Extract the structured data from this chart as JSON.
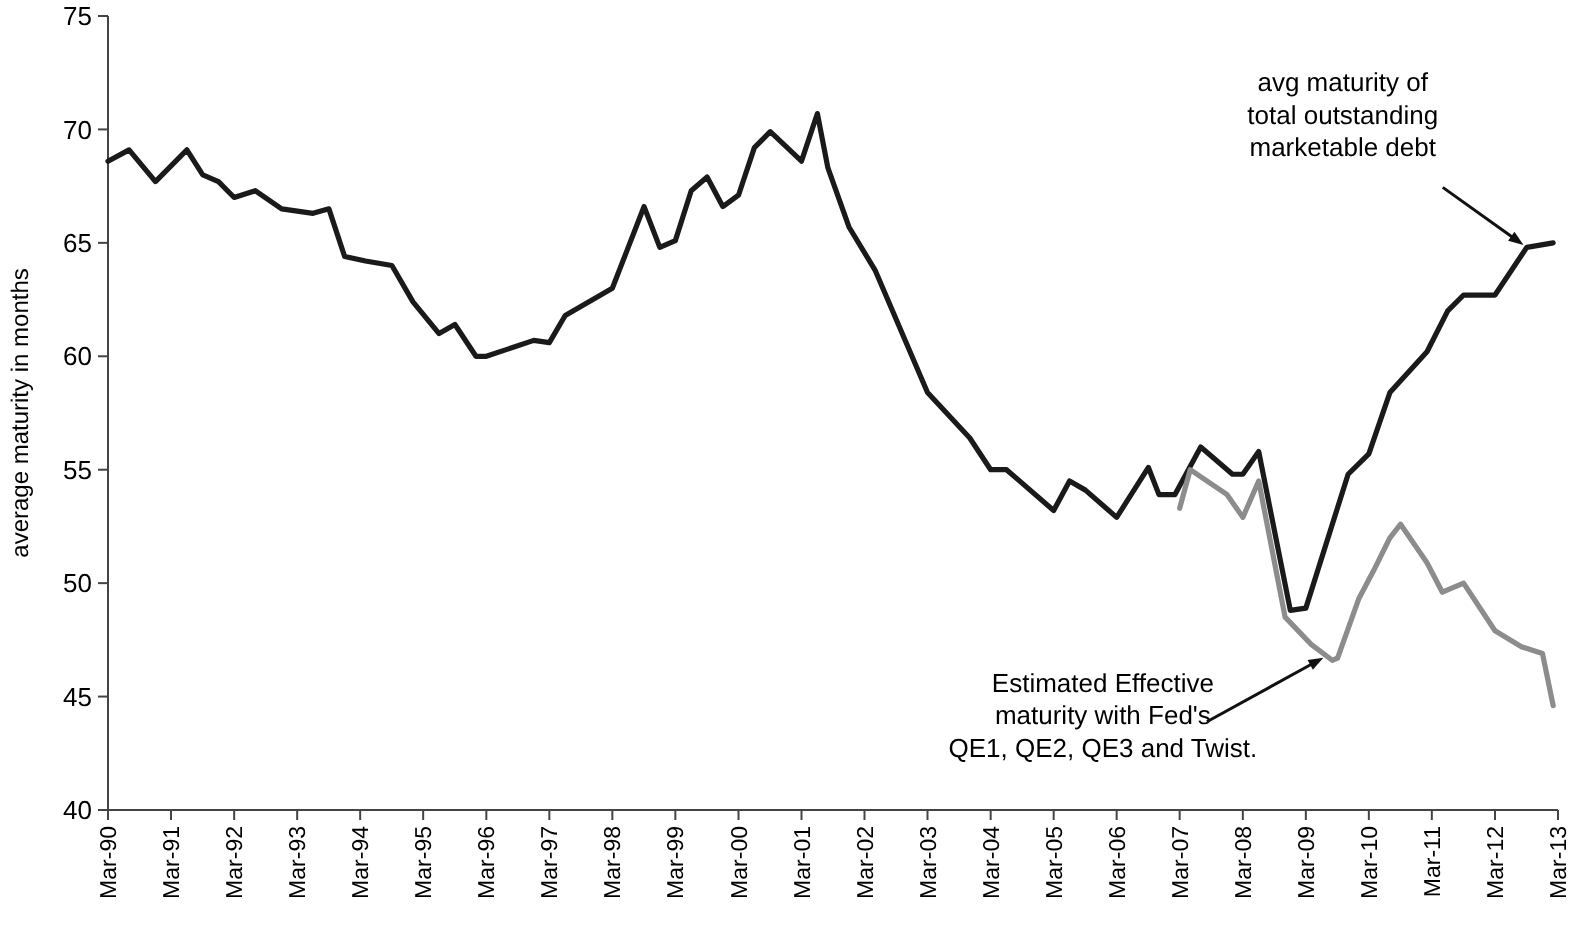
{
  "chart_data": {
    "type": "line",
    "ylabel": "average maturity in months",
    "ylim": [
      40,
      75
    ],
    "yticks": [
      40,
      45,
      50,
      55,
      60,
      65,
      70,
      75
    ],
    "xlim": [
      "1990-03",
      "2013-03"
    ],
    "xticks": [
      {
        "value": "1990-03",
        "label": "Mar-90"
      },
      {
        "value": "1991-03",
        "label": "Mar-91"
      },
      {
        "value": "1992-03",
        "label": "Mar-92"
      },
      {
        "value": "1993-03",
        "label": "Mar-93"
      },
      {
        "value": "1994-03",
        "label": "Mar-94"
      },
      {
        "value": "1995-03",
        "label": "Mar-95"
      },
      {
        "value": "1996-03",
        "label": "Mar-96"
      },
      {
        "value": "1997-03",
        "label": "Mar-97"
      },
      {
        "value": "1998-03",
        "label": "Mar-98"
      },
      {
        "value": "1999-03",
        "label": "Mar-99"
      },
      {
        "value": "2000-03",
        "label": "Mar-00"
      },
      {
        "value": "2001-03",
        "label": "Mar-01"
      },
      {
        "value": "2002-03",
        "label": "Mar-02"
      },
      {
        "value": "2003-03",
        "label": "Mar-03"
      },
      {
        "value": "2004-03",
        "label": "Mar-04"
      },
      {
        "value": "2005-03",
        "label": "Mar-05"
      },
      {
        "value": "2006-03",
        "label": "Mar-06"
      },
      {
        "value": "2007-03",
        "label": "Mar-07"
      },
      {
        "value": "2008-03",
        "label": "Mar-08"
      },
      {
        "value": "2009-03",
        "label": "Mar-09"
      },
      {
        "value": "2010-03",
        "label": "Mar-10"
      },
      {
        "value": "2011-03",
        "label": "Mar-11"
      },
      {
        "value": "2012-03",
        "label": "Mar-12"
      },
      {
        "value": "2013-03",
        "label": "Mar-13"
      }
    ],
    "grid": false,
    "marker": "none",
    "line_style": "solid",
    "series": [
      {
        "color": "#1a1a1a",
        "x": [
          "1990-03",
          "1990-07",
          "1990-12",
          "1991-06",
          "1991-09",
          "1991-12",
          "1992-03",
          "1992-07",
          "1992-12",
          "1993-06",
          "1993-09",
          "1993-12",
          "1994-04",
          "1994-09",
          "1995-01",
          "1995-06",
          "1995-09",
          "1996-01",
          "1996-03",
          "1996-12",
          "1997-03",
          "1997-06",
          "1998-03",
          "1998-06",
          "1998-09",
          "1998-12",
          "1999-03",
          "1999-06",
          "1999-09",
          "1999-12",
          "2000-03",
          "2000-06",
          "2000-09",
          "2001-03",
          "2001-06",
          "2001-08",
          "2001-12",
          "2002-05",
          "2003-03",
          "2003-11",
          "2004-03",
          "2004-06",
          "2005-03",
          "2005-06",
          "2005-09",
          "2006-03",
          "2006-09",
          "2006-11",
          "2007-02",
          "2007-07",
          "2008-01",
          "2008-03",
          "2008-06",
          "2008-12",
          "2009-03",
          "2009-11",
          "2010-03",
          "2010-07",
          "2011-02",
          "2011-06",
          "2011-09",
          "2012-03",
          "2012-09",
          "2013-02"
        ],
        "values": [
          68.6,
          69.1,
          67.7,
          69.1,
          68.0,
          67.7,
          67.0,
          67.3,
          66.5,
          66.3,
          66.5,
          64.4,
          64.2,
          64.0,
          62.4,
          61.0,
          61.4,
          60.0,
          60.0,
          60.7,
          60.6,
          61.8,
          63.0,
          64.8,
          66.6,
          64.8,
          65.1,
          67.3,
          67.9,
          66.6,
          67.1,
          69.2,
          69.9,
          68.6,
          70.7,
          68.3,
          65.7,
          63.8,
          58.4,
          56.4,
          55.0,
          55.0,
          53.2,
          54.5,
          54.1,
          52.9,
          55.1,
          53.9,
          53.9,
          56.0,
          54.8,
          54.8,
          55.8,
          48.8,
          48.9,
          54.8,
          55.7,
          58.4,
          60.2,
          62.0,
          62.7,
          62.7,
          64.8,
          65.0
        ]
      },
      {
        "color": "#8c8c8c",
        "x": [
          "2007-03",
          "2007-05",
          "2007-12",
          "2008-03",
          "2008-06",
          "2008-11",
          "2009-04",
          "2009-08",
          "2009-09",
          "2010-01",
          "2010-04",
          "2010-07",
          "2010-09",
          "2011-02",
          "2011-05",
          "2011-09",
          "2012-03",
          "2012-08",
          "2012-12",
          "2013-02"
        ],
        "values": [
          53.3,
          55.0,
          53.9,
          52.9,
          54.5,
          48.5,
          47.3,
          46.6,
          46.7,
          49.3,
          50.6,
          52.0,
          52.6,
          50.9,
          49.6,
          50.0,
          47.9,
          47.2,
          46.9,
          44.6
        ]
      }
    ],
    "annotations": [
      {
        "text": "avg maturity of\ntotal outstanding\nmarketable debt",
        "x": "2012-09",
        "y": 64.8
      },
      {
        "text": "Estimated Effective\nmaturity with Fed's\nQE1, QE2, QE3 and Twist.",
        "x": "2009-07",
        "y": 46.8
      }
    ]
  }
}
